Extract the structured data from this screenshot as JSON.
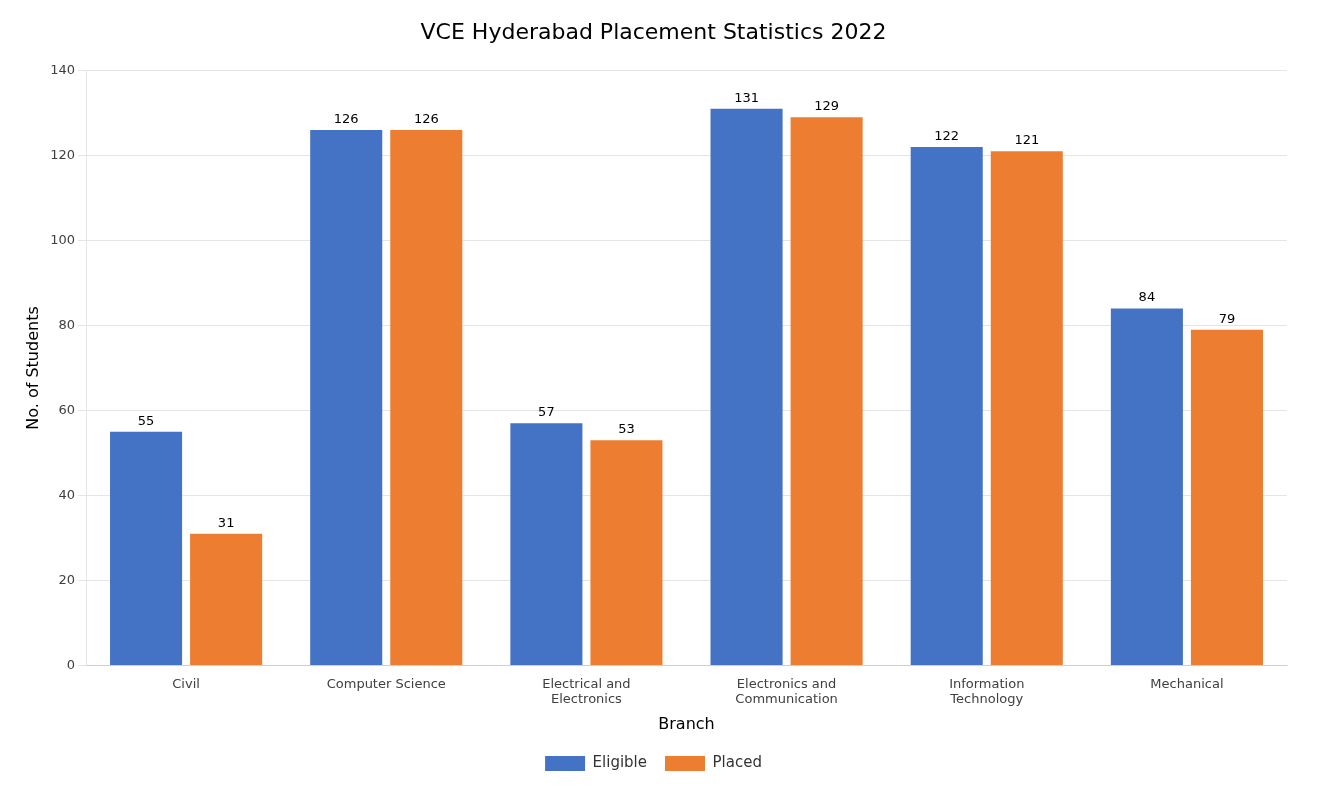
{
  "chart_data": {
    "type": "bar",
    "title": "VCE Hyderabad Placement Statistics 2022",
    "xlabel": "Branch",
    "ylabel": "No. of Students",
    "categories": [
      "Civil",
      "Computer Science",
      "Electrical and\nElectronics",
      "Electronics and\nCommunication",
      "Information\nTechnology",
      "Mechanical"
    ],
    "series": [
      {
        "name": "Eligible",
        "color": "#4472C4",
        "values": [
          55,
          126,
          57,
          131,
          122,
          84
        ]
      },
      {
        "name": "Placed",
        "color": "#ED7D31",
        "values": [
          31,
          126,
          53,
          129,
          121,
          79
        ]
      }
    ],
    "ylim": [
      0,
      140
    ],
    "yticks": [
      0,
      20,
      40,
      60,
      80,
      100,
      120,
      140
    ],
    "grid": true,
    "legend": "bottom",
    "data_labels": true
  }
}
